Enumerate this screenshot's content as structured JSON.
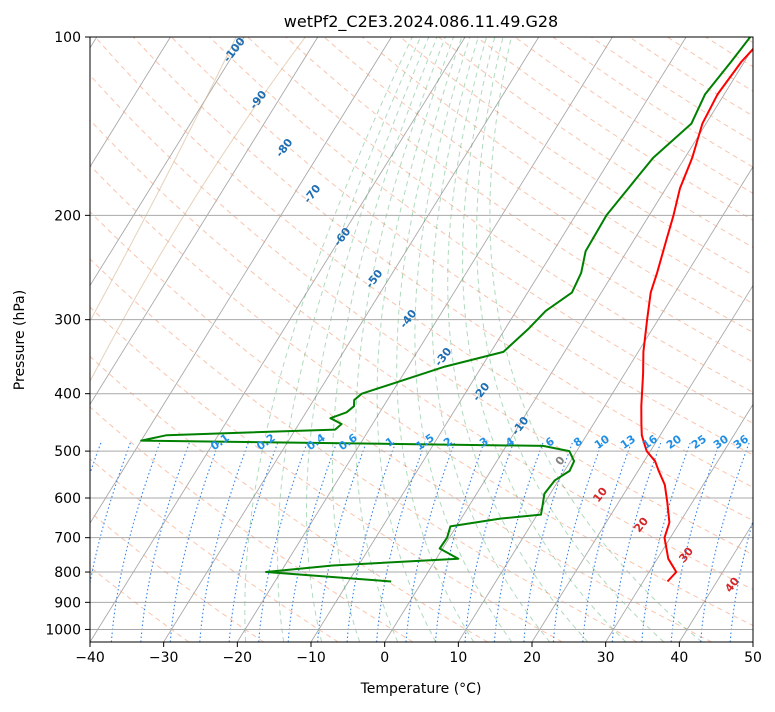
{
  "chart_data": {
    "type": "line",
    "title": "wetPf2_C2E3.2024.086.11.49.G28",
    "xlabel": "Temperature (°C)",
    "ylabel": "Pressure (hPa)",
    "xlim": [
      -40,
      50
    ],
    "ylim": [
      1050,
      100
    ],
    "y_scale": "log",
    "grid": true,
    "x_ticks": [
      -40,
      -30,
      -20,
      -10,
      0,
      10,
      20,
      30,
      40,
      50
    ],
    "y_ticks": [
      100,
      200,
      300,
      400,
      500,
      600,
      700,
      800,
      900,
      1000
    ],
    "series": [
      {
        "color": "#ff0000",
        "points": [
          [
            0.6,
            100
          ],
          [
            -0.4,
            110
          ],
          [
            -0.9,
            125
          ],
          [
            -0.5,
            140
          ],
          [
            1.0,
            160
          ],
          [
            1.9,
            180
          ],
          [
            3.3,
            200
          ],
          [
            4.4,
            220
          ],
          [
            5.9,
            250
          ],
          [
            6.7,
            270
          ],
          [
            8.5,
            300
          ],
          [
            10.7,
            340
          ],
          [
            12.5,
            370
          ],
          [
            15.0,
            420
          ],
          [
            16.5,
            450
          ],
          [
            17.5,
            470
          ],
          [
            18.5,
            485
          ],
          [
            19.5,
            500
          ],
          [
            21.5,
            520
          ],
          [
            22.8,
            540
          ],
          [
            24.8,
            570
          ],
          [
            26.6,
            610
          ],
          [
            28.6,
            660
          ],
          [
            29.2,
            700
          ],
          [
            31.5,
            760
          ],
          [
            33.7,
            800
          ],
          [
            33.3,
            830
          ]
        ]
      },
      {
        "color": "#008000",
        "points": [
          [
            -1.3,
            100
          ],
          [
            -1.8,
            110
          ],
          [
            -2.6,
            125
          ],
          [
            -2.0,
            140
          ],
          [
            -4.3,
            160
          ],
          [
            -5.1,
            180
          ],
          [
            -5.8,
            200
          ],
          [
            -5.6,
            230
          ],
          [
            -4.4,
            250
          ],
          [
            -4.0,
            270
          ],
          [
            -6.0,
            290
          ],
          [
            -6.8,
            310
          ],
          [
            -8.3,
            340
          ],
          [
            -15.0,
            360
          ],
          [
            -24.0,
            400
          ],
          [
            -24.5,
            410
          ],
          [
            -24.0,
            420
          ],
          [
            -24.5,
            430
          ],
          [
            -26.2,
            440
          ],
          [
            -24.2,
            450
          ],
          [
            -24.6,
            460
          ],
          [
            -47.0,
            470
          ],
          [
            -50.0,
            480
          ],
          [
            5.0,
            490
          ],
          [
            9.0,
            500
          ],
          [
            10.5,
            520
          ],
          [
            10.7,
            540
          ],
          [
            9.5,
            560
          ],
          [
            9.2,
            590
          ],
          [
            10.0,
            620
          ],
          [
            10.5,
            640
          ],
          [
            5.3,
            650
          ],
          [
            -0.8,
            670
          ],
          [
            -0.3,
            700
          ],
          [
            -0.4,
            730
          ],
          [
            3.0,
            760
          ],
          [
            -13.5,
            780
          ],
          [
            -22.0,
            800
          ],
          [
            -4.2,
            830
          ]
        ]
      }
    ],
    "annotations": {
      "dry_adiabat_labels": [
        "-100",
        "-90",
        "-80",
        "-70",
        "-60",
        "-50",
        "-40",
        "-30",
        "-20",
        "-10",
        "0",
        "10",
        "20",
        "30",
        "40"
      ],
      "mixing_ratio_labels": [
        "0.1",
        "0.2",
        "0.4",
        "0.6",
        "1",
        "1.5",
        "2",
        "3",
        "4",
        "6",
        "8",
        "10",
        "13",
        "16",
        "20",
        "25",
        "30",
        "36"
      ]
    }
  }
}
